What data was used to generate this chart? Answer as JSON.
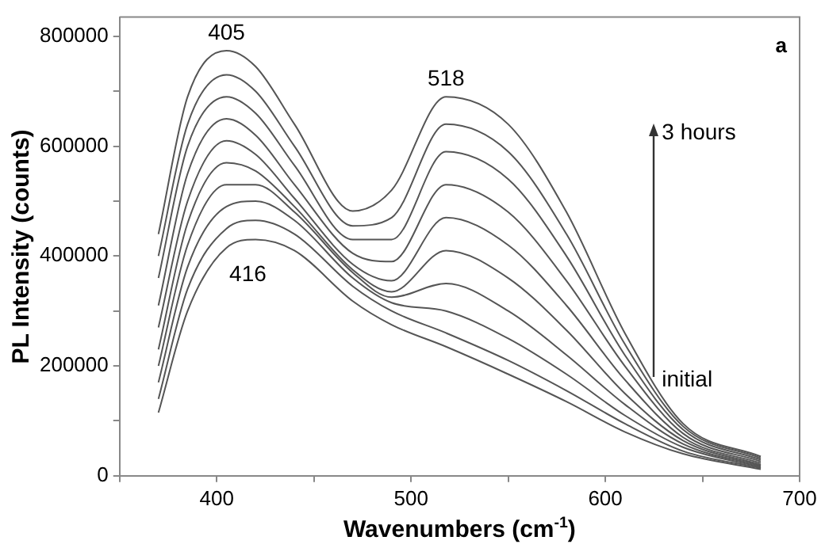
{
  "chart_data": {
    "type": "line",
    "xlabel": "Wavenumbers (cm$^{-1}$)",
    "ylabel": "PL Intensity (counts)",
    "x": [
      370,
      385,
      405,
      420,
      440,
      470,
      490,
      518,
      550,
      580,
      610,
      640,
      680
    ],
    "series": [
      {
        "color": "#555555",
        "values": [
          115000,
          300000,
          415000,
          430000,
          410000,
          318000,
          275000,
          235000,
          185000,
          135000,
          80000,
          40000,
          12000
        ]
      },
      {
        "color": "#555555",
        "values": [
          140000,
          340000,
          450000,
          465000,
          440000,
          345000,
          300000,
          260000,
          210000,
          155000,
          95000,
          45000,
          14000
        ]
      },
      {
        "color": "#555555",
        "values": [
          170000,
          380000,
          490000,
          500000,
          465000,
          360000,
          315000,
          300000,
          250000,
          185000,
          110000,
          52000,
          16000
        ]
      },
      {
        "color": "#555555",
        "values": [
          200000,
          420000,
          530000,
          530000,
          480000,
          370000,
          325000,
          350000,
          300000,
          220000,
          130000,
          58000,
          18000
        ]
      },
      {
        "color": "#555555",
        "values": [
          230000,
          460000,
          570000,
          555000,
          490000,
          375000,
          335000,
          410000,
          360000,
          265000,
          150000,
          64000,
          20000
        ]
      },
      {
        "color": "#555555",
        "values": [
          270000,
          500000,
          610000,
          585000,
          505000,
          385000,
          355000,
          470000,
          420000,
          310000,
          175000,
          70000,
          23000
        ]
      },
      {
        "color": "#555555",
        "values": [
          310000,
          550000,
          650000,
          620000,
          530000,
          405000,
          390000,
          530000,
          480000,
          355000,
          200000,
          77000,
          26000
        ]
      },
      {
        "color": "#555555",
        "values": [
          360000,
          600000,
          690000,
          660000,
          565000,
          430000,
          430000,
          590000,
          540000,
          400000,
          220000,
          84000,
          29000
        ]
      },
      {
        "color": "#555555",
        "values": [
          400000,
          640000,
          730000,
          700000,
          600000,
          455000,
          470000,
          640000,
          590000,
          440000,
          240000,
          90000,
          32000
        ]
      },
      {
        "color": "#555555",
        "values": [
          440000,
          690000,
          774000,
          745000,
          640000,
          482000,
          520000,
          690000,
          640000,
          480000,
          260000,
          95000,
          35000
        ]
      }
    ],
    "xlim": [
      350,
      700
    ],
    "xticks": [
      {
        "value": 350,
        "label": null
      },
      400,
      {
        "value": 450,
        "label": null
      },
      500,
      {
        "value": 550,
        "label": null
      },
      600,
      {
        "value": 650,
        "label": null
      },
      700
    ],
    "ylim": [
      0,
      835000
    ],
    "yticks": [
      0,
      {
        "value": 100000,
        "label": null
      },
      200000,
      {
        "value": 300000,
        "label": null
      },
      400000,
      {
        "value": 500000,
        "label": null
      },
      600000,
      {
        "value": 700000,
        "label": null
      },
      800000
    ],
    "annotations": [
      {
        "text": "405",
        "x": 405,
        "y": 774000
      },
      {
        "text": "518",
        "x": 518,
        "y": 690000
      },
      {
        "text": "416",
        "x": 416,
        "y": 430000
      },
      "a",
      {
        "text": "3 hours",
        "x": 625,
        "y": 630000
      },
      {
        "text": "initial",
        "x": 625,
        "y": 180000
      }
    ],
    "grid": false,
    "legend": false,
    "marker": "none",
    "line_style": "solid"
  }
}
